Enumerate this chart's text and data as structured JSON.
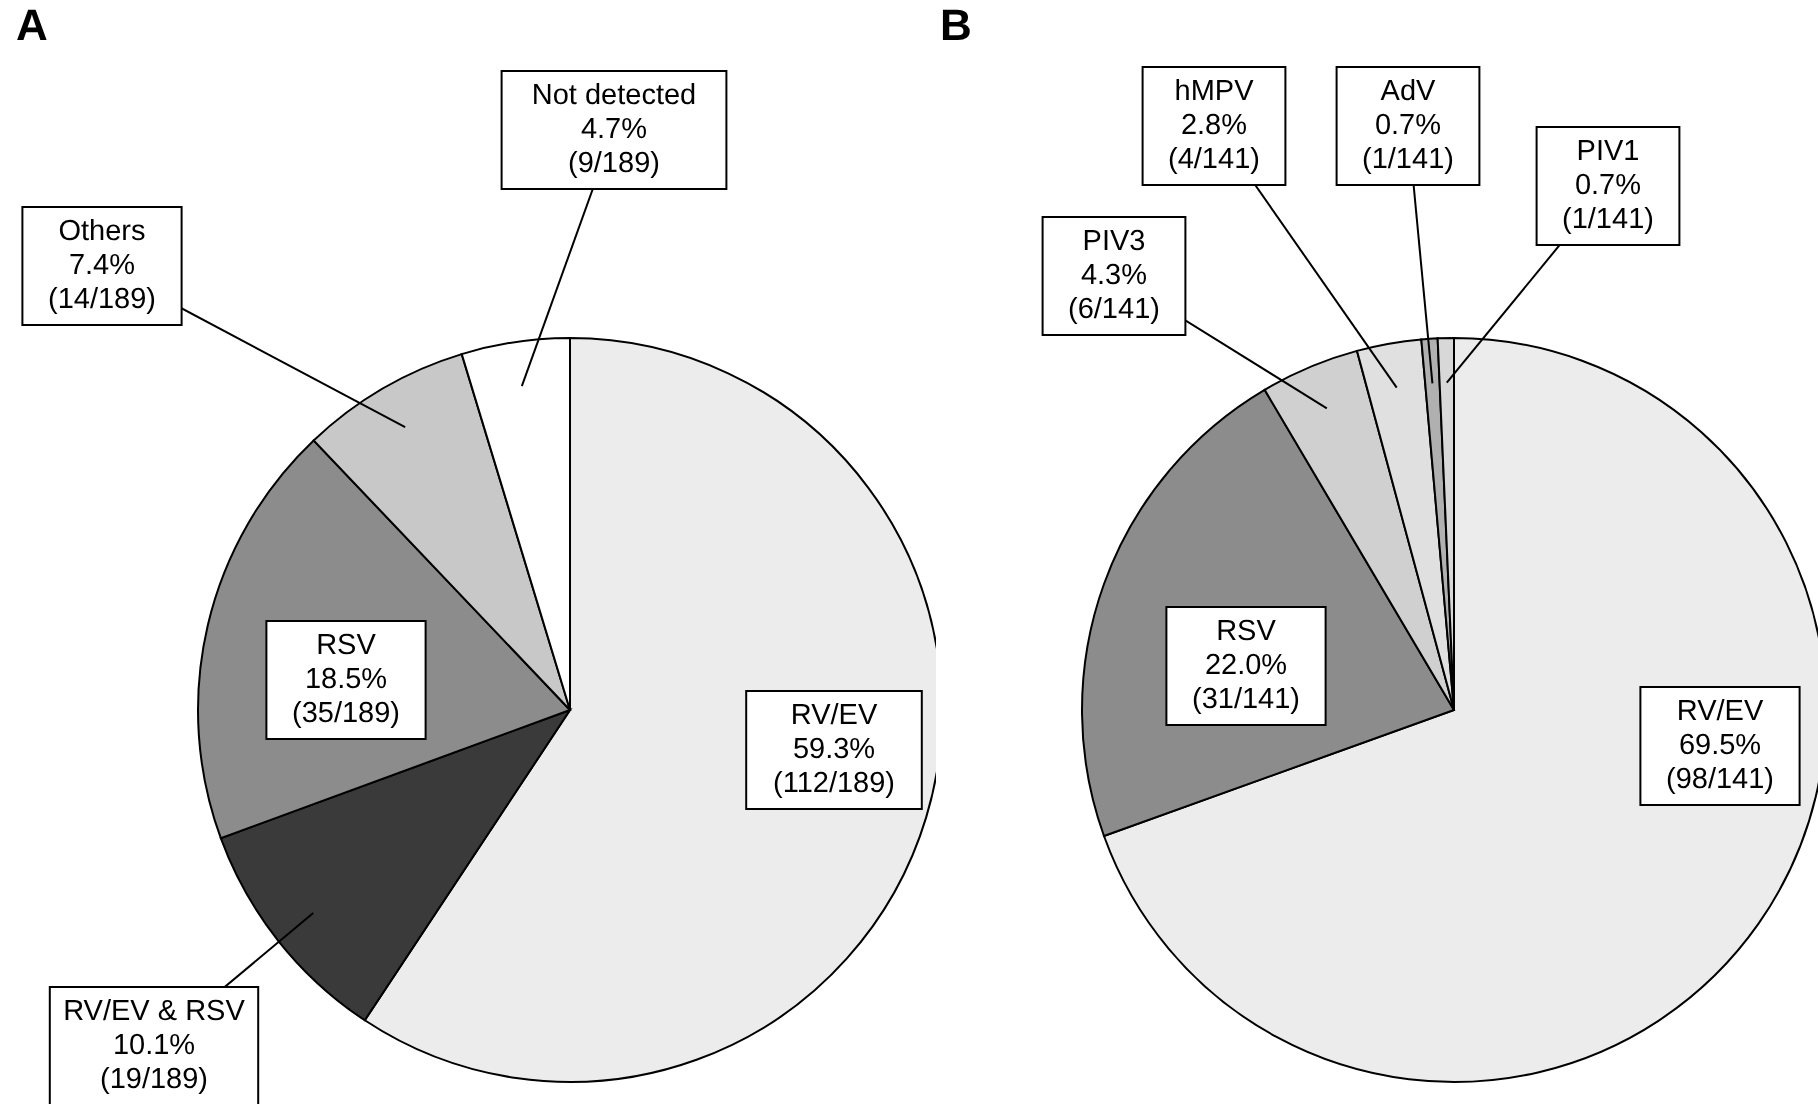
{
  "chart_data": [
    {
      "type": "pie",
      "title": "A",
      "categories": [
        "RV/EV",
        "RV/EV & RSV",
        "RSV",
        "Others",
        "Not detected"
      ],
      "values": [
        59.3,
        10.1,
        18.5,
        7.4,
        4.7
      ],
      "colors": [
        "#ececec",
        "#3a3a3a",
        "#8c8c8c",
        "#c8c8c8",
        "#ffffff"
      ],
      "value_labels": [
        "59.3% (112/189)",
        "10.1% (19/189)",
        "18.5% (35/189)",
        "7.4% (14/189)",
        "4.7% (9/189)"
      ]
    },
    {
      "type": "pie",
      "title": "B",
      "categories": [
        "RV/EV",
        "RSV",
        "PIV3",
        "hMPV",
        "AdV",
        "PIV1"
      ],
      "values": [
        69.5,
        22.0,
        4.3,
        2.8,
        0.7,
        0.7
      ],
      "colors": [
        "#ececec",
        "#8c8c8c",
        "#d0d0d0",
        "#e0e0e0",
        "#b0b0b0",
        "#d8d8d8"
      ],
      "value_labels": [
        "69.5% (98/141)",
        "22.0% (31/141)",
        "4.3% (6/141)",
        "2.8% (4/141)",
        "0.7% (1/141)",
        "0.7% (1/141)"
      ]
    }
  ]
}
